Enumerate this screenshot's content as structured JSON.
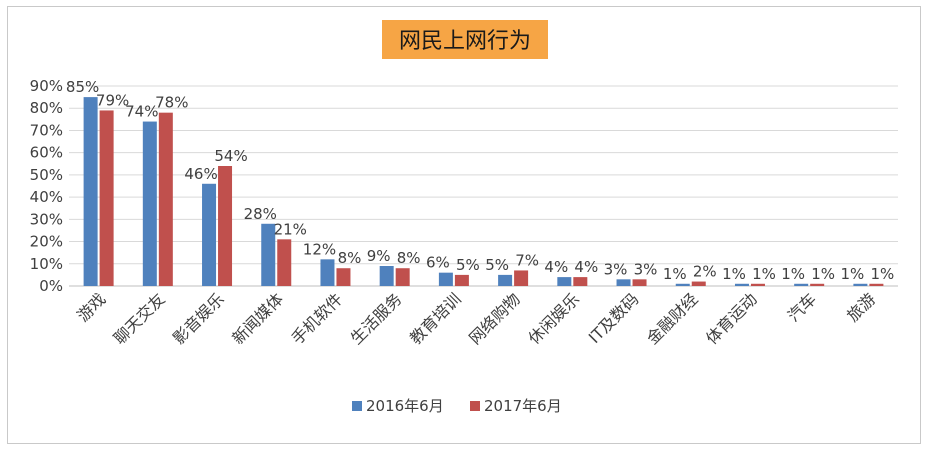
{
  "chart_data": {
    "type": "bar",
    "title": "网民上网行为",
    "categories": [
      "游戏",
      "聊天交友",
      "影音娱乐",
      "新闻媒体",
      "手机软件",
      "生活服务",
      "教育培训",
      "网络购物",
      "休闲娱乐",
      "IT及数码",
      "金融财经",
      "体育运动",
      "汽车",
      "旅游"
    ],
    "series": [
      {
        "name": "2016年6月",
        "color": "#4f81bd",
        "values": [
          85,
          74,
          46,
          28,
          12,
          9,
          6,
          5,
          4,
          3,
          1,
          1,
          1,
          1
        ],
        "labels": [
          "85%",
          "74%",
          "46%",
          "28%",
          "12%",
          "9%",
          "6%",
          "5%",
          "4%",
          "3%",
          "1%",
          "1%",
          "1%",
          "1%"
        ]
      },
      {
        "name": "2017年6月",
        "color": "#c0504d",
        "values": [
          79,
          78,
          54,
          21,
          8,
          8,
          5,
          7,
          4,
          3,
          2,
          1,
          1,
          1
        ],
        "labels": [
          "79%",
          "78%",
          "54%",
          "21%",
          "8%",
          "8%",
          "5%",
          "7%",
          "4%",
          "3%",
          "2%",
          "1%",
          "1%",
          "1%"
        ]
      }
    ],
    "ylim": [
      0,
      90
    ],
    "yticks": [
      "0%",
      "10%",
      "20%",
      "30%",
      "40%",
      "50%",
      "60%",
      "70%",
      "80%",
      "90%"
    ],
    "grid": true,
    "xlabel": "",
    "ylabel": "",
    "legend": "bottom-center"
  }
}
